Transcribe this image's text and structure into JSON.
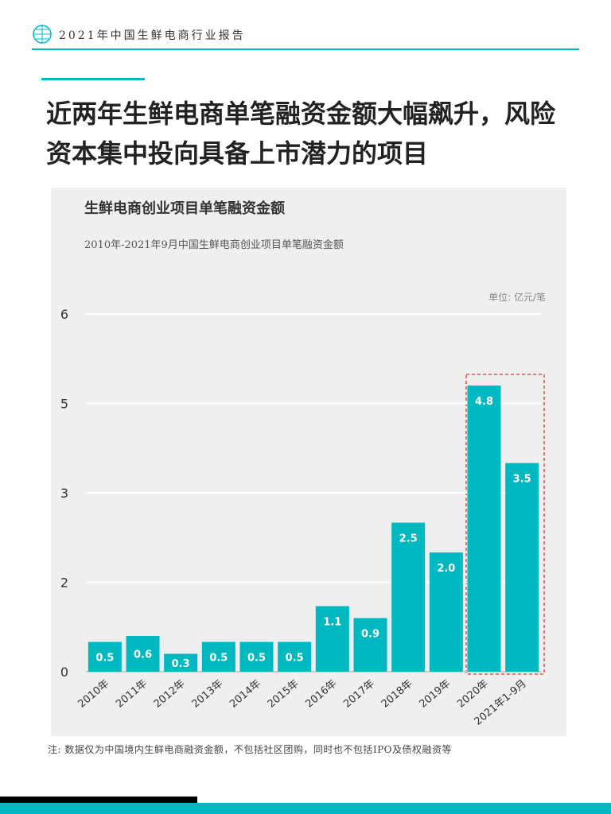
{
  "header": {
    "title": "2021年中国生鲜电商行业报告"
  },
  "headline": "近两年生鲜电商单笔融资金额大幅飙升，风险资本集中投向具备上市潜力的项目",
  "chart_data": {
    "type": "bar",
    "title": "生鲜电商创业项目单笔融资金额",
    "subtitle": "2010年-2021年9月中国生鲜电商创业项目单笔融资金额",
    "unit": "单位: 亿元/笔",
    "categories": [
      "2010年",
      "2011年",
      "2012年",
      "2013年",
      "2014年",
      "2015年",
      "2016年",
      "2017年",
      "2018年",
      "2019年",
      "2020年",
      "2021年1-9月"
    ],
    "values": [
      0.5,
      0.6,
      0.3,
      0.5,
      0.5,
      0.5,
      1.1,
      0.9,
      2.5,
      2.0,
      4.8,
      3.5
    ],
    "value_labels": [
      "0.5",
      "0.6",
      "0.3",
      "0.5",
      "0.5",
      "0.5",
      "1.1",
      "0.9",
      "2.5",
      "2.0",
      "4.8",
      "3.5"
    ],
    "color": "#00b8bf",
    "ylim": [
      0,
      6
    ],
    "yticks": [
      0,
      {
        "value": 1.5,
        "label": "2"
      },
      3,
      {
        "value": 4.5,
        "label": "5"
      },
      6
    ],
    "grid": true
  },
  "footnote": "注: 数据仅为中国境内生鲜电商融资金额，不包括社区团购，同时也不包括IPO及债权融资等"
}
